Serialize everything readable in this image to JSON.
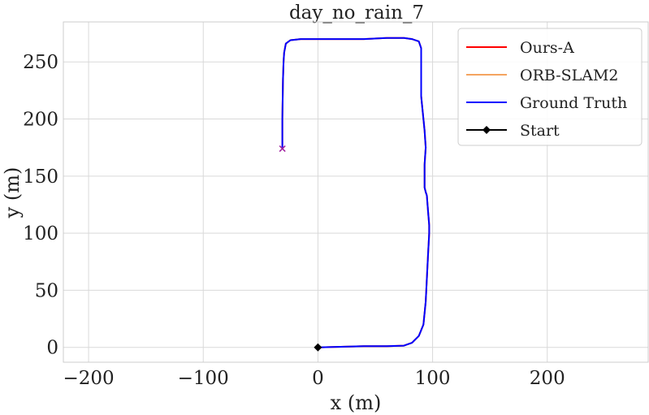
{
  "chart_data": {
    "type": "line",
    "title": "day_no_rain_7",
    "xlabel": "x (m)",
    "ylabel": "y (m)",
    "xlim": [
      -222,
      288
    ],
    "ylim": [
      -13,
      285
    ],
    "xticks": [
      -200,
      -100,
      0,
      100,
      200
    ],
    "yticks": [
      0,
      50,
      100,
      150,
      200,
      250
    ],
    "xtick_labels": [
      "−200",
      "−100",
      "0",
      "100",
      "200"
    ],
    "ytick_labels": [
      "0",
      "50",
      "100",
      "150",
      "200",
      "250"
    ],
    "grid": true,
    "legend_position": "top-right",
    "series": [
      {
        "name": "Ours-A",
        "color": "#ff0000",
        "x": [
          0,
          20,
          40,
          60,
          75,
          82,
          88,
          92,
          94,
          95,
          96,
          97,
          97,
          96,
          95,
          94,
          93,
          93,
          93,
          94,
          93,
          92,
          91,
          90,
          90,
          90,
          88,
          82,
          75,
          60,
          40,
          20,
          0,
          -15,
          -24,
          -28,
          -29.5,
          -30,
          -30.5,
          -31,
          -31
        ],
        "y": [
          0,
          0.5,
          1,
          1,
          1.5,
          4,
          10,
          20,
          40,
          60,
          80,
          100,
          107,
          120,
          133,
          136,
          140,
          150,
          160,
          175,
          190,
          200,
          210,
          220,
          240,
          262,
          268,
          270,
          271,
          271,
          270,
          270,
          270,
          270,
          269,
          266,
          258,
          250,
          235,
          200,
          175
        ]
      },
      {
        "name": "ORB-SLAM2",
        "color": "#f4a460",
        "x": [
          0,
          20,
          40,
          60,
          75,
          82,
          88,
          92,
          94,
          95,
          96,
          97,
          97,
          96,
          95,
          94,
          93,
          93,
          93,
          94,
          93,
          92,
          91,
          90,
          90,
          90,
          88,
          82,
          75,
          60,
          40,
          20,
          0,
          -15,
          -24,
          -28,
          -29.5,
          -30,
          -30.5,
          -31,
          -31
        ],
        "y": [
          0,
          0.5,
          1,
          1,
          1.5,
          4,
          10,
          20,
          40,
          60,
          80,
          100,
          107,
          120,
          133,
          136,
          140,
          150,
          160,
          175,
          190,
          200,
          210,
          220,
          240,
          262,
          268,
          270,
          271,
          271,
          270,
          270,
          270,
          270,
          269,
          266,
          258,
          250,
          235,
          200,
          175
        ]
      },
      {
        "name": "Ground Truth",
        "color": "#0000ff",
        "x": [
          0,
          20,
          40,
          60,
          75,
          82,
          88,
          92,
          94,
          95,
          96,
          97,
          97,
          96,
          95,
          94,
          93,
          93,
          93,
          94,
          93,
          92,
          91,
          90,
          90,
          90,
          88,
          82,
          75,
          60,
          40,
          20,
          0,
          -15,
          -24,
          -28,
          -29.5,
          -30,
          -30.5,
          -31,
          -31
        ],
        "y": [
          0,
          0.5,
          1,
          1,
          1.5,
          4,
          10,
          20,
          40,
          60,
          80,
          100,
          107,
          120,
          133,
          136,
          140,
          150,
          160,
          175,
          190,
          200,
          210,
          220,
          240,
          262,
          268,
          270,
          271,
          271,
          270,
          270,
          270,
          270,
          269,
          266,
          258,
          250,
          235,
          200,
          175
        ]
      },
      {
        "name": "Start",
        "color": "#000000",
        "marker": "diamond",
        "x": [
          0
        ],
        "y": [
          0
        ]
      }
    ],
    "end_marker": {
      "shape": "x",
      "x": -31,
      "y": 174
    }
  }
}
